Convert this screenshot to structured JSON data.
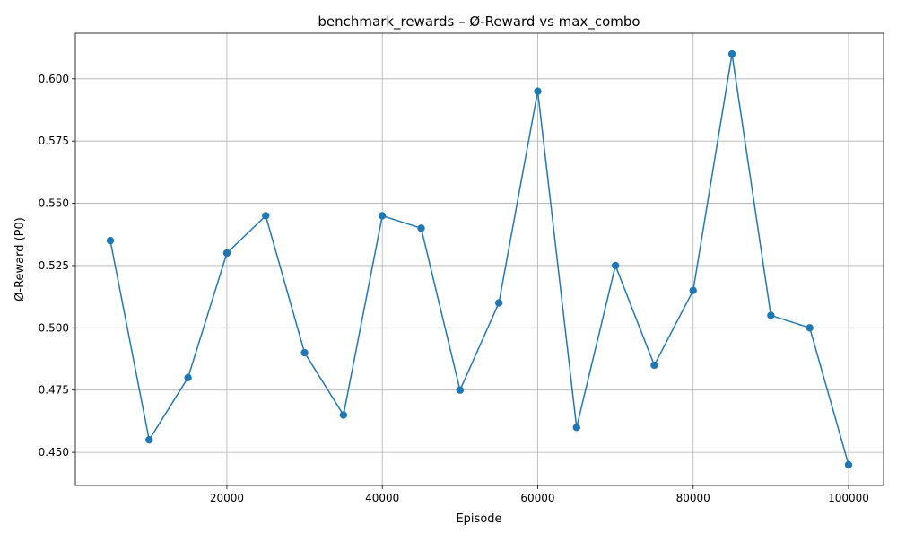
{
  "chart_data": {
    "type": "line",
    "title": "benchmark_rewards – Ø-Reward vs max_combo",
    "xlabel": "Episode",
    "ylabel": "Ø-Reward (P0)",
    "x": [
      5000,
      10000,
      15000,
      20000,
      25000,
      30000,
      35000,
      40000,
      45000,
      50000,
      55000,
      60000,
      65000,
      70000,
      75000,
      80000,
      85000,
      90000,
      95000,
      100000
    ],
    "series": [
      {
        "values": [
          0.535,
          0.455,
          0.48,
          0.53,
          0.545,
          0.49,
          0.465,
          0.545,
          0.54,
          0.475,
          0.51,
          0.595,
          0.46,
          0.525,
          0.485,
          0.515,
          0.61,
          0.505,
          0.5,
          0.445
        ],
        "color": "#1f77b4",
        "marker": "circle"
      }
    ],
    "xlim": [
      500,
      104500
    ],
    "ylim": [
      0.4367,
      0.6183
    ],
    "xticks": [
      20000,
      40000,
      60000,
      80000,
      100000
    ],
    "xtick_labels": [
      "20000",
      "40000",
      "60000",
      "80000",
      "100000"
    ],
    "yticks": [
      0.45,
      0.475,
      0.5,
      0.525,
      0.55,
      0.575,
      0.6
    ],
    "ytick_labels": [
      "0.450",
      "0.475",
      "0.500",
      "0.525",
      "0.550",
      "0.575",
      "0.600"
    ],
    "grid": true,
    "legend": false
  }
}
